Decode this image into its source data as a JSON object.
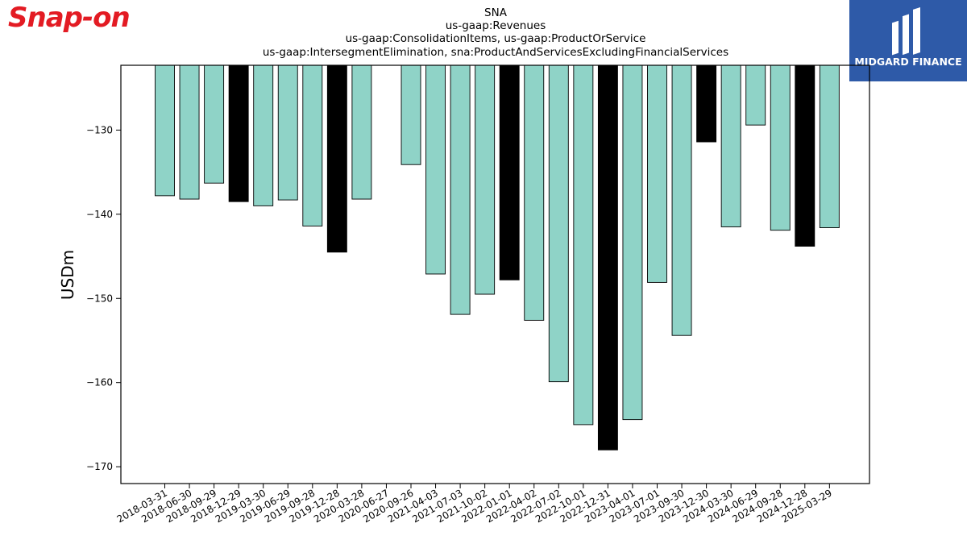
{
  "brand": {
    "logo_text": "Snap-on",
    "logo_color": "#e31b23"
  },
  "corner_badge": {
    "text": "MIDGARD FINANCE",
    "background": "#2e5aa8",
    "icon": "midgard-finance-icon"
  },
  "colors": {
    "normal_bar": "#8fd3c7",
    "highlight_bar": "#000000",
    "bar_edge": "#000000"
  },
  "chart_data": {
    "type": "bar",
    "title_lines": [
      "SNA",
      "us-gaap:Revenues",
      "us-gaap:ConsolidationItems, us-gaap:ProductOrService",
      "us-gaap:IntersegmentElimination, sna:ProductAndServicesExcludingFinancialServices"
    ],
    "xlabel": "",
    "ylabel": "USDm",
    "ylim": [
      -172,
      -122.3
    ],
    "yticks": [
      -130,
      -140,
      -150,
      -160,
      -170
    ],
    "ytick_labels": [
      "−130",
      "−140",
      "−150",
      "−160",
      "−170"
    ],
    "grid": false,
    "legend": "none",
    "categories": [
      "2018-03-31",
      "2018-06-30",
      "2018-09-29",
      "2018-12-29",
      "2019-03-30",
      "2019-06-29",
      "2019-09-28",
      "2019-12-28",
      "2020-03-28",
      "2020-06-27",
      "2020-09-26",
      "2021-04-03",
      "2021-07-03",
      "2021-10-02",
      "2022-01-01",
      "2022-04-02",
      "2022-07-02",
      "2022-10-01",
      "2022-12-31",
      "2023-04-01",
      "2023-07-01",
      "2023-09-30",
      "2023-12-30",
      "2024-03-30",
      "2024-06-29",
      "2024-09-28",
      "2024-12-28",
      "2025-03-29"
    ],
    "values": [
      -137.8,
      -138.2,
      -136.3,
      -138.5,
      -139.0,
      -138.3,
      -141.4,
      -144.5,
      -138.2,
      null,
      -134.1,
      -147.1,
      -151.9,
      -149.5,
      -147.8,
      -152.6,
      -159.9,
      -165.0,
      -168.0,
      -164.4,
      -148.1,
      -154.4,
      -131.4,
      -141.5,
      -129.4,
      -141.9,
      -143.8,
      -141.6
    ],
    "highlight": [
      false,
      false,
      false,
      true,
      false,
      false,
      false,
      true,
      false,
      false,
      false,
      false,
      false,
      false,
      true,
      false,
      false,
      false,
      true,
      false,
      false,
      false,
      true,
      false,
      false,
      false,
      true,
      false
    ]
  }
}
